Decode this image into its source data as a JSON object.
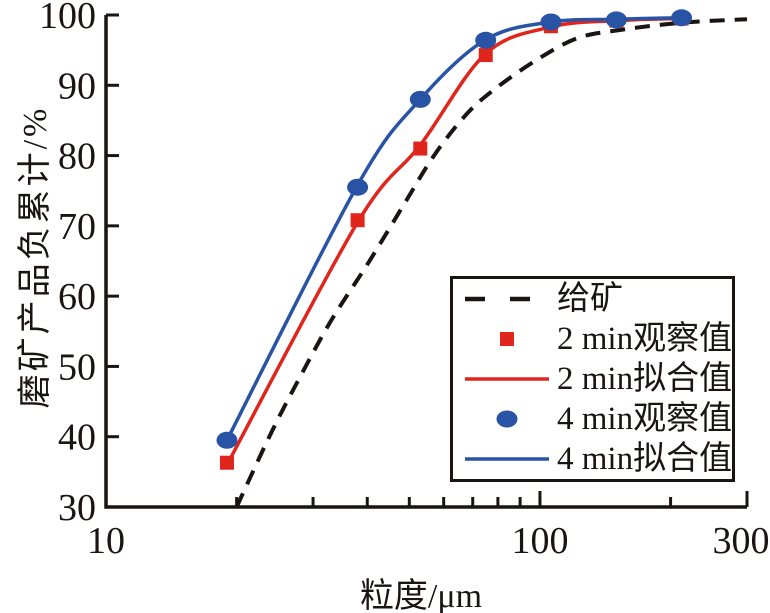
{
  "figure": {
    "x_axis_title": "粒度/μm",
    "y_axis_title": "磨矿产品负累计/%",
    "background": "#ffffff",
    "text_color": "#1a1413"
  },
  "legend": {
    "position": "lower-right",
    "items": [
      {
        "label": "给矿",
        "swatch": "dashed-line",
        "color": "#1a1413"
      },
      {
        "label": "2 min观察值",
        "swatch": "square",
        "color": "#e0261c"
      },
      {
        "label": "2 min拟合值",
        "swatch": "line",
        "color": "#e0261c"
      },
      {
        "label": "4 min观察值",
        "swatch": "circle",
        "color": "#2953a4"
      },
      {
        "label": "4 min拟合值",
        "swatch": "line",
        "color": "#2953a4"
      }
    ]
  },
  "chart_data": {
    "type": "line",
    "title": "",
    "xlabel": "粒度/μm",
    "ylabel": "磨矿产品负累计/%",
    "x_scale": "log",
    "xlim": [
      10,
      300
    ],
    "ylim": [
      30,
      100
    ],
    "grid": false,
    "x_major_ticks": [
      10,
      100,
      300
    ],
    "x_major_tick_labels": [
      "10",
      "100",
      "300"
    ],
    "x_minor_ticks": [
      20,
      30,
      40,
      50,
      60,
      70,
      80,
      90,
      200
    ],
    "y_ticks": [
      30,
      40,
      50,
      60,
      70,
      80,
      90,
      100
    ],
    "sizes_um": [
      19,
      38,
      53,
      75,
      106,
      150,
      212
    ],
    "colors": {
      "feed": "#1a1413",
      "two_min": "#e0261c",
      "four_min": "#2953a4"
    },
    "series": [
      {
        "key": "feed",
        "name": "给矿",
        "type": "line",
        "style": "dashed",
        "color": "#1a1413",
        "points": [
          [
            20,
            30
          ],
          [
            24,
            40.5
          ],
          [
            28,
            48.5
          ],
          [
            33,
            56.5
          ],
          [
            40,
            64.5
          ],
          [
            48,
            72.5
          ],
          [
            57,
            80
          ],
          [
            68,
            86
          ],
          [
            80,
            89.8
          ],
          [
            100,
            93.9
          ],
          [
            122,
            96.7
          ],
          [
            150,
            97.8
          ],
          [
            212,
            98.9
          ],
          [
            300,
            99.4
          ]
        ]
      },
      {
        "key": "fit-2min",
        "name": "2 min拟合值",
        "type": "line",
        "style": "solid",
        "color": "#e0261c",
        "points": [
          [
            19,
            36
          ],
          [
            38,
            70.5
          ],
          [
            53,
            81.5
          ],
          [
            75,
            94.5
          ],
          [
            106,
            98.3
          ],
          [
            150,
            99.2
          ],
          [
            212,
            99.5
          ]
        ]
      },
      {
        "key": "fit-4min",
        "name": "4 min拟合值",
        "type": "line",
        "style": "solid",
        "color": "#2953a4",
        "points": [
          [
            19,
            39.5
          ],
          [
            38,
            75.8
          ],
          [
            53,
            88
          ],
          [
            75,
            96.5
          ],
          [
            106,
            99.0
          ],
          [
            150,
            99.4
          ],
          [
            212,
            99.6
          ]
        ]
      },
      {
        "key": "obs-2min",
        "name": "2 min观察值",
        "type": "scatter",
        "marker": "square",
        "color": "#e0261c",
        "points": [
          [
            19,
            36.3
          ],
          [
            38,
            70.8
          ],
          [
            53,
            81
          ],
          [
            75,
            94.3
          ],
          [
            106,
            98.4
          ],
          [
            150,
            99.2
          ],
          [
            212,
            99.5
          ]
        ]
      },
      {
        "key": "obs-4min",
        "name": "4 min观察值",
        "type": "scatter",
        "marker": "circle",
        "color": "#2953a4",
        "points": [
          [
            19,
            39.5
          ],
          [
            38,
            75.5
          ],
          [
            53,
            88
          ],
          [
            75,
            96.4
          ],
          [
            106,
            99.0
          ],
          [
            150,
            99.3
          ],
          [
            212,
            99.6
          ]
        ]
      }
    ]
  }
}
